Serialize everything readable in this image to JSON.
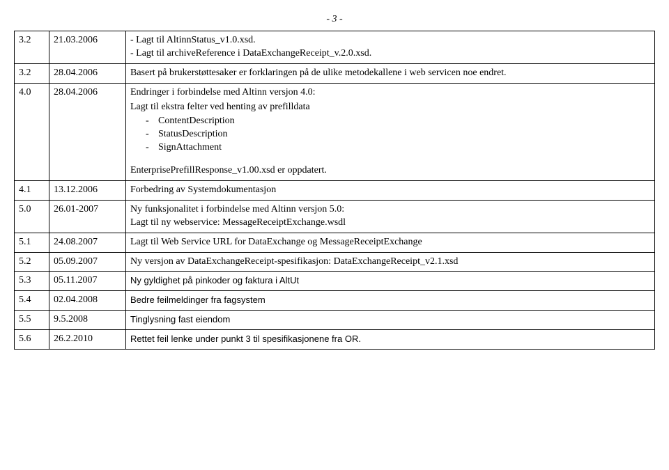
{
  "pageNumber": "- 3 -",
  "rows": [
    {
      "ver": "3.2",
      "date": "21.03.2006",
      "desc": {
        "lines": [
          "- Lagt til AltinnStatus_v1.0.xsd.",
          "- Lagt til archiveReference i DataExchangeReceipt_v.2.0.xsd."
        ]
      }
    },
    {
      "ver": "3.2",
      "date": "28.04.2006",
      "desc": {
        "lines": [
          "Basert på brukerstøttesaker er forklaringen på de ulike metodekallene i web servicen noe endret."
        ]
      }
    },
    {
      "ver": "4.0",
      "date": "28.04.2006",
      "desc": {
        "intro": "Endringer i forbindelse med Altinn versjon 4.0:",
        "sub": "Lagt til ekstra felter ved henting av prefilldata",
        "bullets": [
          "ContentDescription",
          "StatusDescription",
          "SignAttachment"
        ],
        "outro": "EnterprisePrefillResponse_v1.00.xsd er oppdatert."
      }
    },
    {
      "ver": "4.1",
      "date": "13.12.2006",
      "desc": {
        "lines": [
          "Forbedring av Systemdokumentasjon"
        ]
      }
    },
    {
      "ver": "5.0",
      "date": "26.01-2007",
      "desc": {
        "lines": [
          "Ny funksjonalitet i forbindelse med Altinn versjon 5.0:",
          "Lagt til ny webservice: MessageReceiptExchange.wsdl"
        ]
      }
    },
    {
      "ver": "5.1",
      "date": "24.08.2007",
      "desc": {
        "lines": [
          "Lagt til Web Service URL for DataExchange og MessageReceiptExchange"
        ]
      }
    },
    {
      "ver": "5.2",
      "date": "05.09.2007",
      "desc": {
        "lines": [
          "Ny versjon av DataExchangeReceipt-spesifikasjon: DataExchangeReceipt_v2.1.xsd"
        ]
      }
    },
    {
      "ver": "5.3",
      "date": "05.11.2007",
      "desc": {
        "sans": true,
        "lines": [
          "Ny gyldighet på pinkoder og faktura i AltUt"
        ]
      }
    },
    {
      "ver": "5.4",
      "date": "02.04.2008",
      "desc": {
        "sans": true,
        "lines": [
          "Bedre feilmeldinger fra fagsystem"
        ]
      }
    },
    {
      "ver": "5.5",
      "date": "9.5.2008",
      "desc": {
        "sans": true,
        "lines": [
          "Tinglysning fast eiendom"
        ]
      }
    },
    {
      "ver": "5.6",
      "date": "26.2.2010",
      "desc": {
        "sans": true,
        "lines": [
          "Rettet feil lenke under punkt 3 til spesifikasjonene fra OR."
        ]
      }
    }
  ]
}
